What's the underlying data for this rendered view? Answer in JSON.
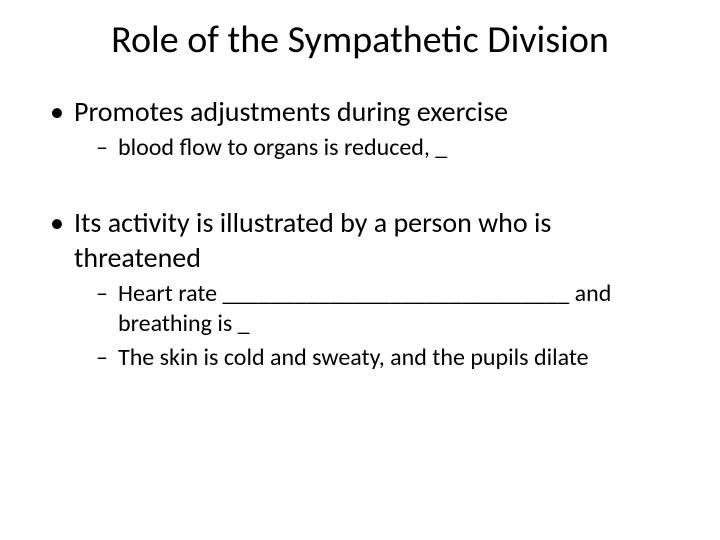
{
  "slide": {
    "background_color": "#ffffff",
    "text_color": "#000000",
    "title": {
      "text": "Role of the Sympathetic Division",
      "fontsize": 38,
      "weight": 400,
      "align": "center"
    },
    "bullets": [
      {
        "text": "Promotes adjustments during exercise",
        "fontsize": 28,
        "sub": [
          {
            "text": "blood flow to organs is reduced, _",
            "fontsize": 24
          }
        ]
      },
      {
        "text": "Its activity is illustrated by a person who is threatened",
        "fontsize": 28,
        "sub": [
          {
            "text": "Heart rate _____________________________ and breathing is _",
            "fontsize": 24
          },
          {
            "text": "The skin is cold and sweaty, and the pupils dilate",
            "fontsize": 24
          }
        ]
      }
    ]
  }
}
